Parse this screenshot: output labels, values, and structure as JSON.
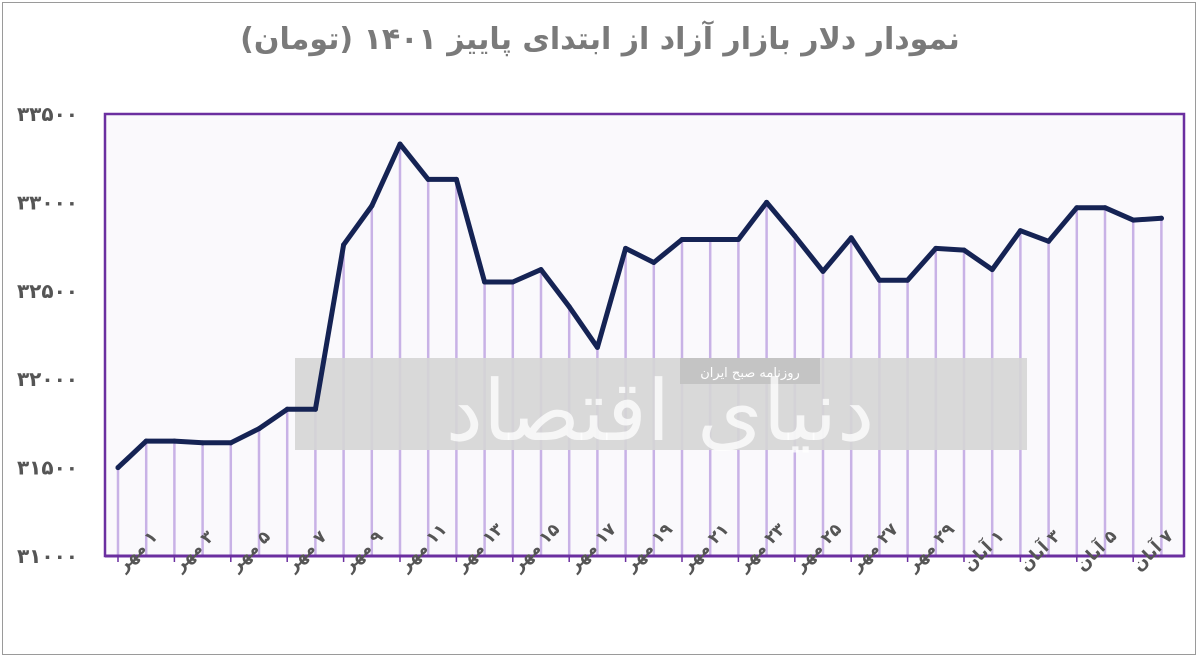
{
  "title": "نمودار دلار بازار آزاد از ابتدای پاییز ۱۴۰۱ (تومان)",
  "watermark": {
    "main": "دنیای اقتصاد",
    "sub": "روزنامه صبح ایران"
  },
  "colors": {
    "line": "#152354",
    "drop_lines": "#c8b2e6",
    "plot_border": "#6b2fa0",
    "plot_bg": "#faf9fc",
    "watermark_band": "#d5d5d5"
  },
  "chart_data": {
    "type": "line",
    "title": "نمودار دلار بازار آزاد از ابتدای پاییز ۱۴۰۱ (تومان)",
    "xlabel": "",
    "ylabel": "",
    "ylim": [
      31000,
      33500
    ],
    "yticks": [
      31000,
      31500,
      32000,
      32500,
      33000,
      33500
    ],
    "ytick_labels": [
      "۳۱۰۰۰",
      "۳۱۵۰۰",
      "۳۲۰۰۰",
      "۳۲۵۰۰",
      "۳۳۰۰۰",
      "۳۳۵۰۰"
    ],
    "grid": false,
    "legend": "none",
    "tick_labels": [
      "۱ مهر",
      "۳ مهر",
      "۵ مهر",
      "۷ مهر",
      "۹ مهر",
      "۱۱ مهر",
      "۱۳ مهر",
      "۱۵ مهر",
      "۱۷ مهر",
      "۱۹ مهر",
      "۲۱ مهر",
      "۲۳ مهر",
      "۲۵ مهر",
      "۲۷ مهر",
      "۲۹ مهر",
      "۱ آبان",
      "۳ آبان",
      "۵ آبان",
      "۷ آبان"
    ],
    "series": [
      {
        "values": [
          31500,
          31650,
          31650,
          31640,
          31640,
          31720,
          31830,
          31830,
          32760,
          32980,
          33330,
          33130,
          33130,
          32550,
          32550,
          32620,
          32410,
          32180,
          32740,
          32660,
          32790,
          32790,
          32790,
          33000,
          32810,
          32610,
          32800,
          32560,
          32560,
          32740,
          32730,
          32620,
          32840,
          32780,
          32970,
          32970,
          32900,
          32910
        ]
      }
    ]
  }
}
